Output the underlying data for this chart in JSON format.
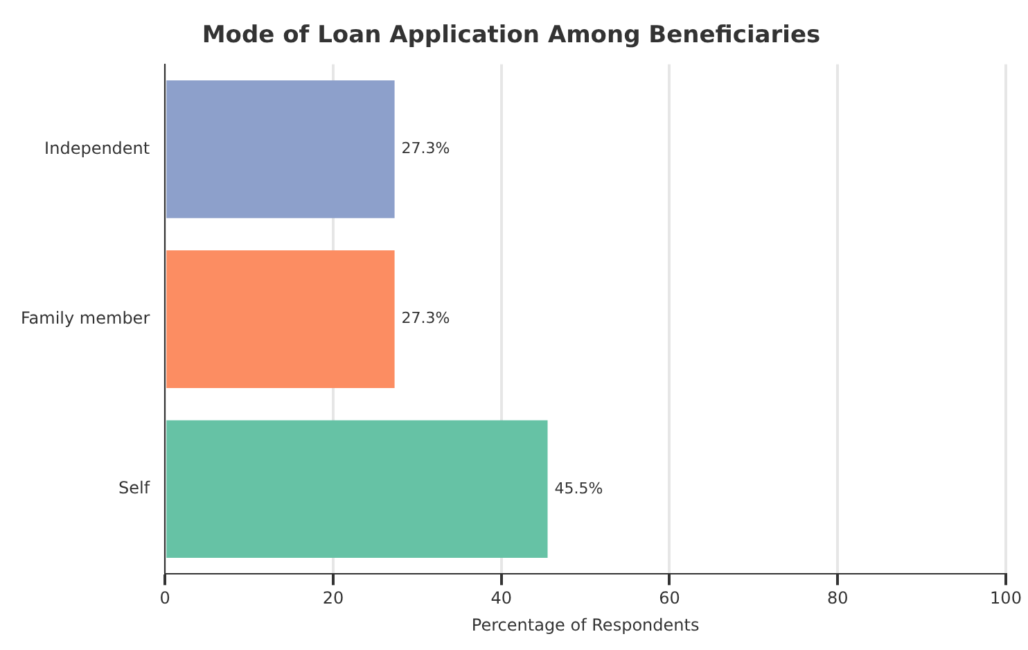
{
  "chart_data": {
    "type": "bar",
    "orientation": "horizontal",
    "title": "Mode of Loan Application Among Beneficiaries",
    "xlabel": "Percentage of Respondents",
    "categories": [
      "Independent",
      "Family member",
      "Self"
    ],
    "values": [
      27.3,
      27.3,
      45.5
    ],
    "colors": [
      "#8da0cb",
      "#fc8d62",
      "#66c2a5"
    ],
    "value_labels": [
      "27.3%",
      "27.3%",
      "45.5%"
    ],
    "xlim": [
      0,
      100
    ],
    "xticks": [
      0,
      20,
      40,
      60,
      80,
      100
    ],
    "grid": "x",
    "legend": false
  }
}
